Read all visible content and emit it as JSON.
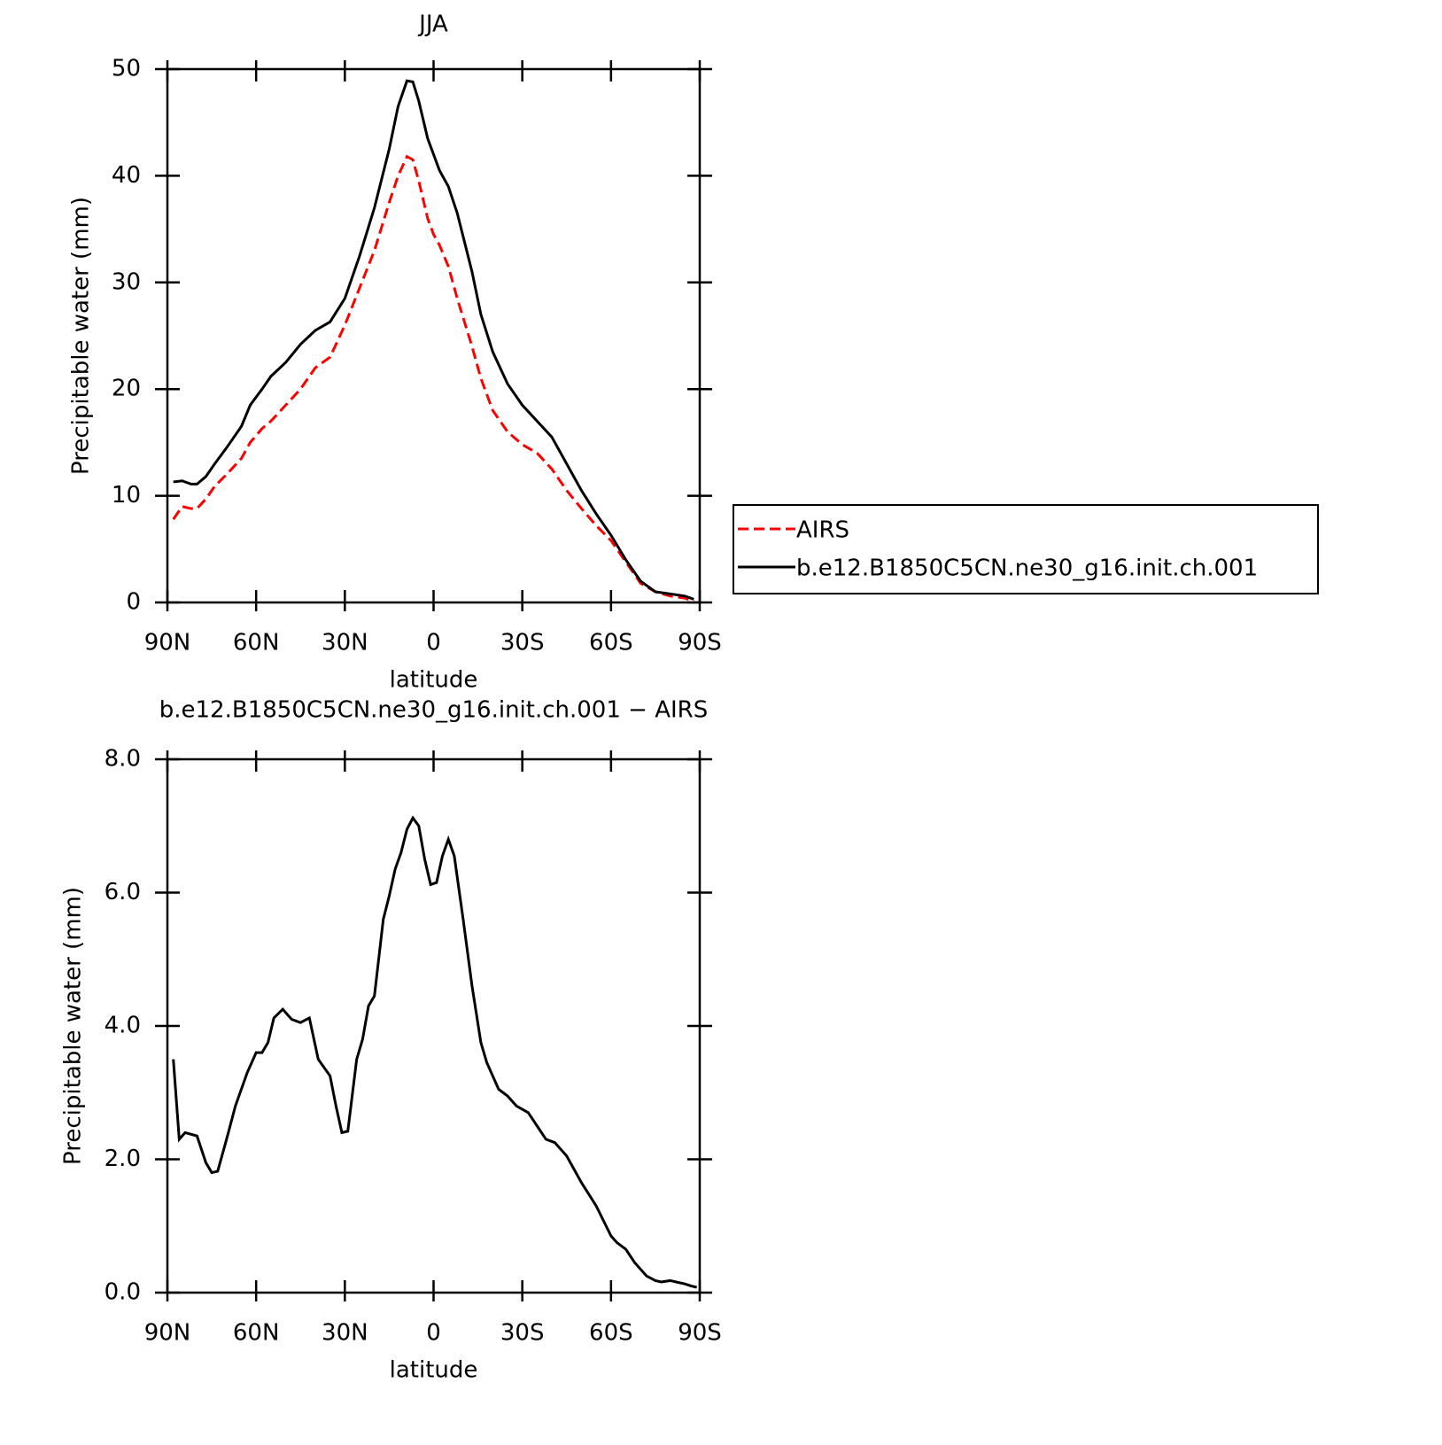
{
  "chart_data": [
    {
      "type": "line",
      "title": "JJA",
      "xlabel": "latitude",
      "ylabel": "Precipitable water (mm)",
      "x": [
        88,
        85,
        82,
        80,
        77,
        74,
        70,
        65,
        62,
        58,
        55,
        50,
        45,
        40,
        35,
        30,
        25,
        20,
        15,
        12,
        9,
        7,
        5,
        2,
        0,
        -2,
        -5,
        -8,
        -13,
        -16,
        -20,
        -25,
        -30,
        -35,
        -40,
        -45,
        -50,
        -55,
        -60,
        -65,
        -70,
        -75,
        -80,
        -85,
        -88
      ],
      "series": [
        {
          "name": "AIRS",
          "color": "#ff0000",
          "linestyle": "dashed",
          "values": [
            7.8,
            9.0,
            8.8,
            8.8,
            9.7,
            10.9,
            12.0,
            13.5,
            15.0,
            16.3,
            17.0,
            18.5,
            20.0,
            22.0,
            23.0,
            26.0,
            29.5,
            33.0,
            37.5,
            40.0,
            41.8,
            41.5,
            39.5,
            36.0,
            34.5,
            33.5,
            31.5,
            28.5,
            24.0,
            21.0,
            18.0,
            16.0,
            14.8,
            14.0,
            12.5,
            10.5,
            8.8,
            7.2,
            5.8,
            3.8,
            1.8,
            1.0,
            0.6,
            0.4,
            0.1
          ]
        },
        {
          "name": "b.e12.B1850C5CN.ne30_g16.init.ch.001",
          "color": "#000000",
          "linestyle": "solid",
          "values": [
            11.3,
            11.4,
            11.1,
            11.1,
            11.8,
            13.0,
            14.5,
            16.5,
            18.5,
            20.0,
            21.2,
            22.5,
            24.2,
            25.5,
            26.3,
            28.5,
            32.5,
            37.0,
            42.5,
            46.5,
            48.9,
            48.8,
            47.0,
            43.5,
            42.0,
            40.5,
            39.0,
            36.5,
            31.0,
            27.0,
            23.5,
            20.5,
            18.5,
            17.0,
            15.5,
            13.0,
            10.5,
            8.3,
            6.3,
            4.0,
            2.0,
            1.0,
            0.8,
            0.6,
            0.3
          ]
        }
      ],
      "xlim": [
        90,
        -90
      ],
      "xticks": [
        {
          "value": 90,
          "label": "90N"
        },
        {
          "value": 60,
          "label": "60N"
        },
        {
          "value": 30,
          "label": "30N"
        },
        0,
        {
          "value": -30,
          "label": "30S"
        },
        {
          "value": -60,
          "label": "60S"
        },
        {
          "value": -90,
          "label": "90S"
        }
      ],
      "ylim": [
        0,
        50
      ],
      "yticks": [
        0,
        10,
        20,
        30,
        40,
        50
      ],
      "legend": "right"
    },
    {
      "type": "line",
      "title": "b.e12.B1850C5CN.ne30_g16.init.ch.001 − AIRS",
      "xlabel": "latitude",
      "ylabel": "Precipitable water (mm)",
      "x": [
        88,
        86,
        84,
        80,
        77,
        75,
        73,
        70,
        67,
        63,
        60,
        58,
        56,
        54,
        51,
        48,
        45,
        42,
        39,
        35,
        33,
        31,
        29,
        26,
        24,
        22,
        20,
        17,
        15,
        13,
        11,
        9,
        7,
        5,
        3,
        1,
        -1,
        -3,
        -5,
        -7,
        -10,
        -13,
        -16,
        -18,
        -20,
        -22,
        -25,
        -28,
        -30,
        -32,
        -35,
        -38,
        -41,
        -45,
        -50,
        -55,
        -60,
        -62,
        -65,
        -68,
        -72,
        -75,
        -77,
        -80,
        -85,
        -87,
        -89
      ],
      "series": [
        {
          "color": "#000000",
          "linestyle": "solid",
          "values": [
            3.5,
            2.3,
            2.4,
            2.35,
            1.95,
            1.8,
            1.82,
            2.3,
            2.8,
            3.3,
            3.6,
            3.6,
            3.75,
            4.12,
            4.25,
            4.1,
            4.05,
            4.12,
            3.5,
            3.25,
            2.8,
            2.4,
            2.42,
            3.5,
            3.8,
            4.3,
            4.45,
            5.6,
            5.95,
            6.35,
            6.6,
            6.95,
            7.12,
            7.0,
            6.5,
            6.12,
            6.15,
            6.55,
            6.8,
            6.55,
            5.6,
            4.6,
            3.75,
            3.45,
            3.25,
            3.05,
            2.95,
            2.8,
            2.75,
            2.7,
            2.5,
            2.3,
            2.25,
            2.05,
            1.65,
            1.3,
            0.85,
            0.75,
            0.65,
            0.45,
            0.25,
            0.18,
            0.16,
            0.18,
            0.13,
            0.1,
            0.08
          ]
        }
      ],
      "xlim": [
        90,
        -90
      ],
      "xticks": [
        {
          "value": 90,
          "label": "90N"
        },
        {
          "value": 60,
          "label": "60N"
        },
        {
          "value": 30,
          "label": "30N"
        },
        0,
        {
          "value": -30,
          "label": "30S"
        },
        {
          "value": -60,
          "label": "60S"
        },
        {
          "value": -90,
          "label": "90S"
        }
      ],
      "ylim": [
        0,
        8
      ],
      "yticks": [
        {
          "value": 0,
          "label": "0.0"
        },
        {
          "value": 2,
          "label": "2.0"
        },
        {
          "value": 4,
          "label": "4.0"
        },
        {
          "value": 6,
          "label": "6.0"
        },
        {
          "value": 8,
          "label": "8.0"
        }
      ]
    }
  ]
}
